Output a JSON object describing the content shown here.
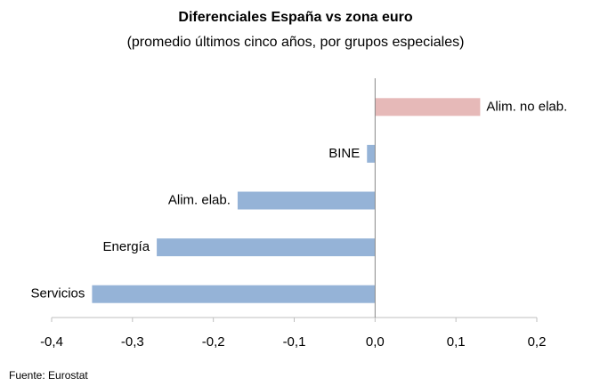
{
  "chart_data": {
    "type": "hbar",
    "title": "Diferenciales España vs zona euro",
    "subtitle": "(promedio últimos cinco años, por grupos especiales)",
    "source": "Fuente: Eurostat",
    "categories": [
      "Alim. no elab.",
      "BINE",
      "Alim. elab.",
      "Energía",
      "Servicios"
    ],
    "values": [
      0.13,
      -0.01,
      -0.17,
      -0.27,
      -0.35
    ],
    "colors": [
      "#e6b9b8",
      "#95b3d7",
      "#95b3d7",
      "#95b3d7",
      "#95b3d7"
    ],
    "xlim": [
      -0.4,
      0.2
    ],
    "xticks": [
      {
        "value": -0.4,
        "label": "-0,4"
      },
      {
        "value": -0.3,
        "label": "-0,3"
      },
      {
        "value": -0.2,
        "label": "-0,2"
      },
      {
        "value": -0.1,
        "label": "-0,1"
      },
      {
        "value": 0,
        "label": "0,0"
      },
      {
        "value": 0.1,
        "label": "0,1"
      },
      {
        "value": 0.2,
        "label": "0,2"
      }
    ],
    "grid": false
  }
}
